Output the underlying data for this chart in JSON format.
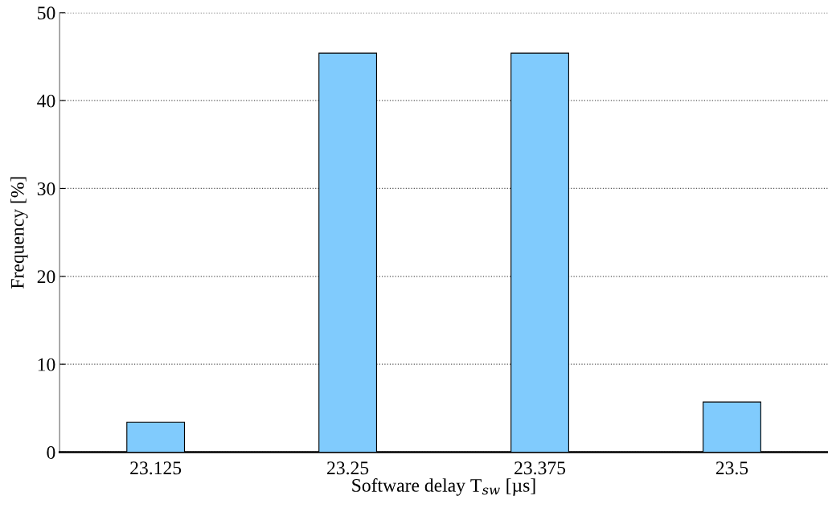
{
  "chart_data": {
    "type": "bar",
    "xlabel": "Software delay T$_{sw}$ [µs]",
    "ylabel": "Frequency [%]",
    "categories": [
      "23.125",
      "23.25",
      "23.375",
      "23.5"
    ],
    "values": [
      3.4,
      45.4,
      45.4,
      5.7
    ],
    "color": "#80cbfd",
    "ylim": [
      0,
      50
    ],
    "yticks": [
      0,
      10,
      20,
      30,
      40,
      50
    ],
    "grid": "y",
    "legend": false
  }
}
